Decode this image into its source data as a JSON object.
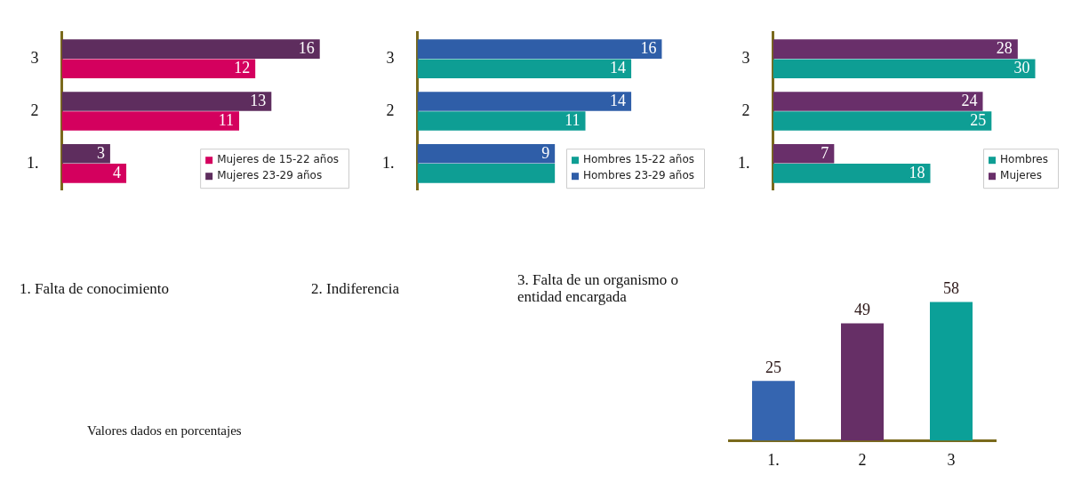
{
  "chart_data": [
    {
      "type": "bar",
      "orientation": "horizontal",
      "categories": [
        "3",
        "2",
        "1."
      ],
      "xlim": [
        0,
        18
      ],
      "tick_labels": "y",
      "legend": "bottom right",
      "data_labels": true,
      "series": [
        {
          "name": "Mujeres de 15-22 años",
          "color": "#d4005e",
          "values": [
            12,
            11,
            4
          ]
        },
        {
          "name": "Mujeres 23-29 años",
          "color": "#5e2d5e",
          "values": [
            16,
            13,
            3
          ]
        }
      ]
    },
    {
      "type": "bar",
      "orientation": "horizontal",
      "categories": [
        "3",
        "2",
        "1."
      ],
      "xlim": [
        0,
        19
      ],
      "tick_labels": "y",
      "legend": "bottom right",
      "series": [
        {
          "name": "Hombres 15-22 años",
          "color": "#0e9e94",
          "values": [
            14,
            11,
            9
          ],
          "value_labels": [
            "14",
            "11",
            null
          ]
        },
        {
          "name": "Hombres 23-29 años",
          "color": "#2f5ea8",
          "values": [
            16,
            14,
            9
          ],
          "value_labels": [
            "16",
            "14",
            "9"
          ]
        }
      ]
    },
    {
      "type": "bar",
      "orientation": "horizontal",
      "categories": [
        "3",
        "2",
        "1."
      ],
      "xlim": [
        0,
        33
      ],
      "tick_labels": "y",
      "legend": "bottom right",
      "data_labels": true,
      "series": [
        {
          "name": "Hombres",
          "color": "#0e9e94",
          "values": [
            30,
            25,
            18
          ]
        },
        {
          "name": "Mujeres",
          "color": "#692f6a",
          "values": [
            28,
            24,
            7
          ]
        }
      ]
    },
    {
      "type": "other",
      "annotations": [
        "1. Falta de conocimiento",
        "2. Indiferencia",
        "3. Falta de un organismo o entidad encargada",
        "Valores dados en porcentajes"
      ]
    },
    {
      "type": "bar",
      "categories": [
        "1.",
        "2",
        "3"
      ],
      "values": [
        25,
        49,
        58
      ],
      "colors": [
        "#3565b0",
        "#662f66",
        "#0ba098"
      ],
      "tick_labels": "x",
      "data_labels": true
    }
  ]
}
